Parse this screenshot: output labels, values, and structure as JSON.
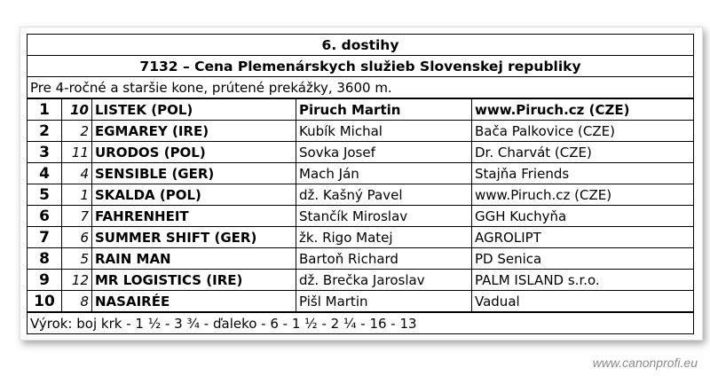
{
  "race": {
    "title": "6. dostihy",
    "name": "7132 – Cena Plemenárskych služieb Slovenskej republiky",
    "conditions": "Pre 4-ročné a staršie kone, prútené prekážky, 3600 m.",
    "results": [
      {
        "place": "1",
        "number": "10",
        "horse": "LISTEK (POL)",
        "jockey": "Piruch Martin",
        "owner": "www.Piruch.cz (CZE)"
      },
      {
        "place": "2",
        "number": "2",
        "horse": "EGMAREY (IRE)",
        "jockey": "Kubík Michal",
        "owner": "Bača Palkovice (CZE)"
      },
      {
        "place": "3",
        "number": "11",
        "horse": "URODOS (POL)",
        "jockey": "Sovka Josef",
        "owner": "Dr. Charvát (CZE)"
      },
      {
        "place": "4",
        "number": "4",
        "horse": "SENSIBLE (GER)",
        "jockey": "Mach Ján",
        "owner": "Stajňa Friends"
      },
      {
        "place": "5",
        "number": "1",
        "horse": "SKALDA (POL)",
        "jockey": "dž. Kašný Pavel",
        "owner": "www.Piruch.cz (CZE)"
      },
      {
        "place": "6",
        "number": "7",
        "horse": "FAHRENHEIT",
        "jockey": "Stančík Miroslav",
        "owner": "GGH Kuchyňa"
      },
      {
        "place": "7",
        "number": "6",
        "horse": "SUMMER SHIFT (GER)",
        "jockey": "žk. Rigo Matej",
        "owner": "AGROLIPT"
      },
      {
        "place": "8",
        "number": "5",
        "horse": "RAIN MAN",
        "jockey": "Bartoň Richard",
        "owner": "PD Senica"
      },
      {
        "place": "9",
        "number": "12",
        "horse": "MR LOGISTICS (IRE)",
        "jockey": "dž. Brečka Jaroslav",
        "owner": "PALM ISLAND s.r.o."
      },
      {
        "place": "10",
        "number": "8",
        "horse": "NASAIRÉE",
        "jockey": "Pišl Martin",
        "owner": "Vadual"
      }
    ],
    "verdict": "Výrok: boj krk - 1 ½ - 3 ¾ - ďaleko - 6 - 1 ½ - 2 ¼ - 16 - 13"
  },
  "watermark": "www.canonprofi.eu"
}
